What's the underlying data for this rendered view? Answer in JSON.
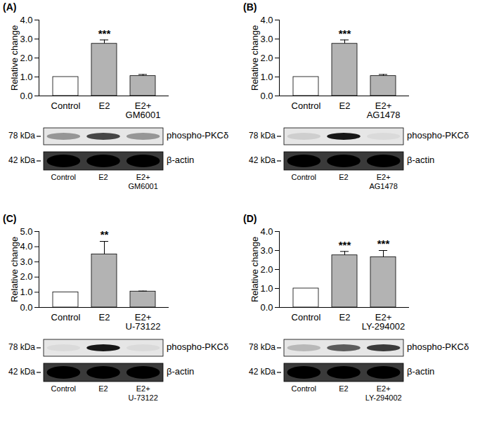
{
  "chart_data": [
    {
      "type": "bar",
      "panel": "(A)",
      "y_label": "Relative change",
      "categories": [
        "Control",
        "E2",
        "E2+\nGM6001"
      ],
      "values": [
        1,
        2.75,
        1.05
      ],
      "error": [
        0,
        0.2,
        0.08
      ],
      "colors": [
        "#ffffff",
        "#b3b3b3",
        "#b3b3b3"
      ],
      "ylim": [
        0,
        4
      ],
      "yticks": [
        0,
        1,
        2,
        3,
        4
      ],
      "annotations": [
        {
          "x": "E2",
          "text": "***"
        }
      ],
      "blot": {
        "rows": [
          {
            "size": "78 kDa",
            "label": "phospho-PKCδ",
            "band_intensity": [
              0.35,
              0.7,
              0.35
            ]
          },
          {
            "size": "42 kDa",
            "label": "β-actin",
            "band_intensity": [
              1,
              1,
              1
            ]
          }
        ]
      }
    },
    {
      "type": "bar",
      "panel": "(B)",
      "y_label": "Relative change",
      "categories": [
        "Control",
        "E2",
        "E2+\nAG1478"
      ],
      "values": [
        1,
        2.75,
        1.05
      ],
      "error": [
        0,
        0.2,
        0.08
      ],
      "colors": [
        "#ffffff",
        "#b3b3b3",
        "#b3b3b3"
      ],
      "ylim": [
        0,
        4
      ],
      "yticks": [
        0,
        1,
        2,
        3,
        4
      ],
      "annotations": [
        {
          "x": "E2",
          "text": "***"
        }
      ],
      "blot": {
        "rows": [
          {
            "size": "78 kDa",
            "label": "phospho-PKCδ",
            "band_intensity": [
              0.1,
              0.9,
              0.05
            ]
          },
          {
            "size": "42 kDa",
            "label": "β-actin",
            "band_intensity": [
              1,
              1,
              1
            ]
          }
        ]
      }
    },
    {
      "type": "bar",
      "panel": "(C)",
      "y_label": "Relative change",
      "categories": [
        "Control",
        "E2",
        "E2+\nU-73122"
      ],
      "values": [
        1,
        3.5,
        1.05
      ],
      "error": [
        0,
        0.85,
        0.03
      ],
      "colors": [
        "#ffffff",
        "#b3b3b3",
        "#b3b3b3"
      ],
      "ylim": [
        0,
        5
      ],
      "yticks": [
        0,
        1,
        2,
        3,
        4,
        5
      ],
      "annotations": [
        {
          "x": "E2",
          "text": "**"
        }
      ],
      "blot": {
        "rows": [
          {
            "size": "78 kDa",
            "label": "phospho-PKCδ",
            "band_intensity": [
              0.05,
              0.9,
              0.05
            ]
          },
          {
            "size": "42 kDa",
            "label": "β-actin",
            "band_intensity": [
              1,
              1,
              1
            ]
          }
        ]
      }
    },
    {
      "type": "bar",
      "panel": "(D)",
      "y_label": "Relative change",
      "categories": [
        "Control",
        "E2",
        "E2+\nLY-294002"
      ],
      "values": [
        1,
        2.75,
        2.65
      ],
      "error": [
        0,
        0.2,
        0.35
      ],
      "colors": [
        "#ffffff",
        "#b3b3b3",
        "#b3b3b3"
      ],
      "ylim": [
        0,
        4
      ],
      "yticks": [
        0,
        1,
        2,
        3,
        4
      ],
      "annotations": [
        {
          "x": "E2",
          "text": "***"
        },
        {
          "x": "E2+\nLY-294002",
          "text": "***"
        }
      ],
      "blot": {
        "rows": [
          {
            "size": "78 kDa",
            "label": "phospho-PKCδ",
            "band_intensity": [
              0.2,
              0.6,
              0.75
            ]
          },
          {
            "size": "42 kDa",
            "label": "β-actin",
            "band_intensity": [
              1,
              1,
              1
            ]
          }
        ]
      }
    }
  ]
}
